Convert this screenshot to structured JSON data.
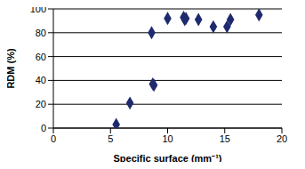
{
  "chart_data": {
    "type": "scatter",
    "x_label": "Specific surface (mm⁻¹)",
    "y_label": "RDM (%)",
    "x": [
      5.5,
      6.7,
      8.6,
      8.7,
      8.8,
      10.0,
      11.4,
      11.5,
      11.6,
      12.7,
      14.0,
      15.2,
      15.5,
      18.0
    ],
    "values": [
      3,
      21,
      80,
      37,
      36,
      92,
      93,
      91,
      92,
      91,
      85,
      85,
      91,
      95
    ],
    "color": "#1f2a6e",
    "marker": "diamond",
    "xlim": [
      0,
      20
    ],
    "xticks": [
      0,
      5,
      10,
      15,
      20
    ],
    "ylim": [
      0,
      100
    ],
    "yticks": [
      0,
      20,
      40,
      60,
      80,
      100
    ],
    "grid": true
  }
}
